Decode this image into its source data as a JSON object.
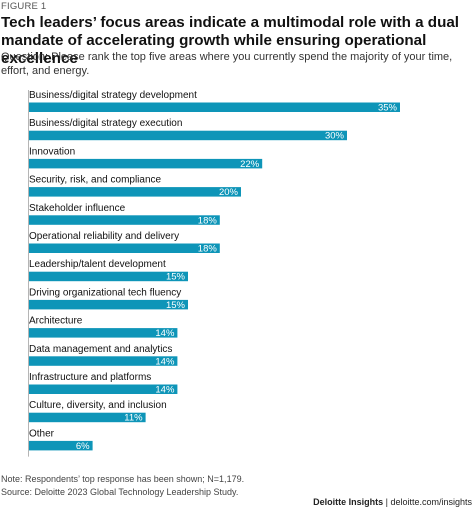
{
  "figure_label": "FIGURE 1",
  "title": "Tech leaders’ focus areas indicate a multimodal role with a dual mandate of accelerating growth while ensuring operational excellence",
  "subtitle": "Question: Please rank the top five areas where you currently spend the majority of your time, effort, and energy.",
  "note": "Note: Respondents’ top response has been shown; N=1,179.",
  "source": "Source: Deloitte 2023 Global Technology Leadership Study.",
  "footer": {
    "brand": "Deloitte Insights",
    "separator": " | ",
    "site": "deloitte.com/insights"
  },
  "colors": {
    "bar": "#0e95b8",
    "baseline": "#b5b5b5"
  },
  "chart_data": {
    "type": "bar",
    "orientation": "horizontal",
    "unit": "%",
    "categories": [
      "Business/digital strategy development",
      "Business/digital strategy execution",
      "Innovation",
      "Security, risk, and compliance",
      "Stakeholder influence",
      "Operational reliability and delivery",
      "Leadership/talent development",
      "Driving organizational tech fluency",
      "Architecture",
      "Data management and analytics",
      "Infrastructure and platforms",
      "Culture, diversity, and inclusion",
      "Other"
    ],
    "values": [
      35,
      30,
      22,
      20,
      18,
      18,
      15,
      15,
      14,
      14,
      14,
      11,
      6
    ],
    "value_labels": [
      "35%",
      "30%",
      "22%",
      "20%",
      "18%",
      "18%",
      "15%",
      "15%",
      "14%",
      "14%",
      "14%",
      "11%",
      "6%"
    ],
    "xlim": [
      0,
      35
    ]
  }
}
